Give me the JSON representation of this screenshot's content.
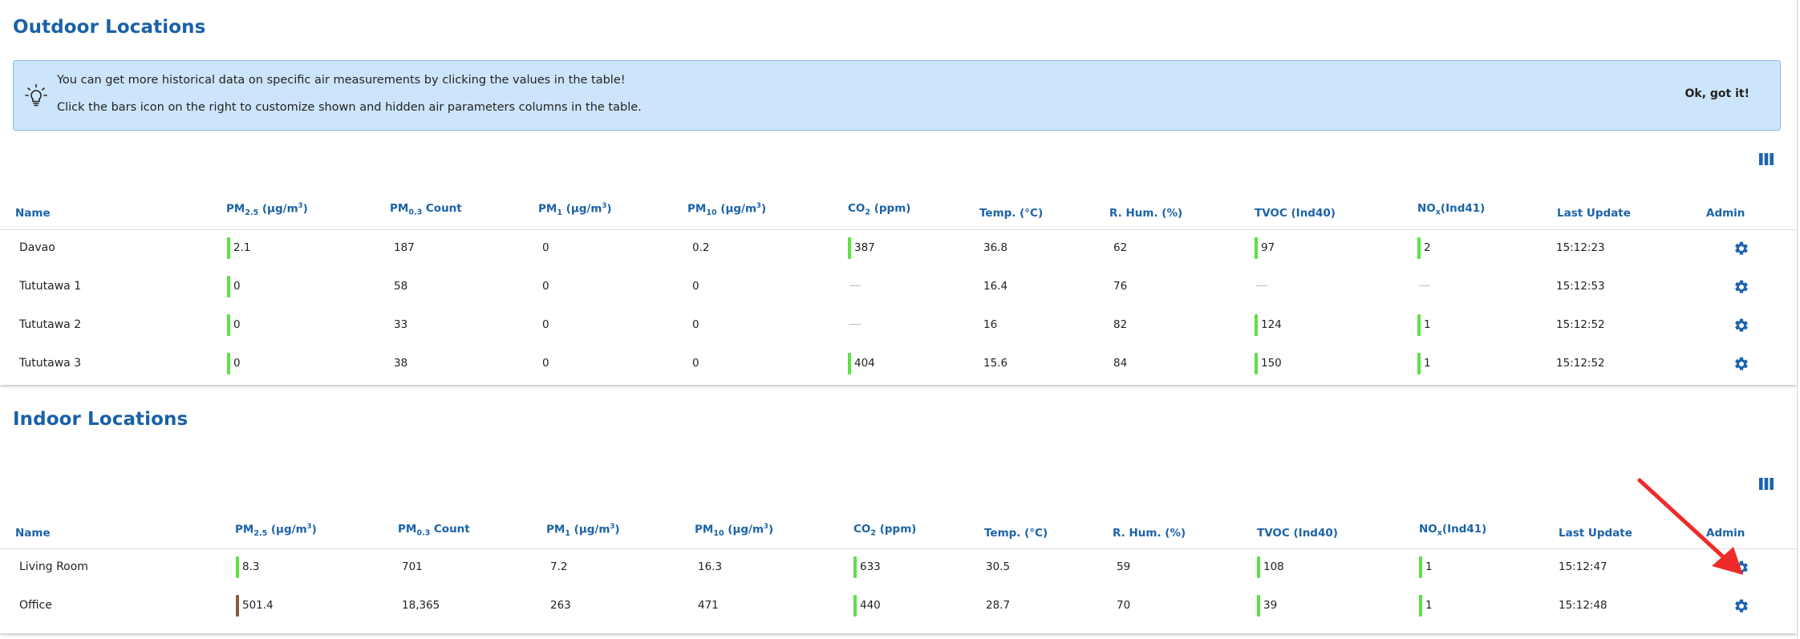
{
  "outdoor": {
    "title": "Outdoor Locations",
    "tip": {
      "line1": "You can get more historical data on specific air measurements by clicking the values in the table!",
      "line2": "Click the bars icon on the right to customize shown and hidden air parameters columns in the table.",
      "ok_label": "Ok, got it!"
    },
    "columns": {
      "name": "Name",
      "pm25_base": "PM",
      "pm25_sub": "2.5",
      "pm25_unit": " (µg/m",
      "pm25_sup": "3",
      "pm25_close": ")",
      "pm03_base": "PM",
      "pm03_sub": "0.3",
      "pm03_unit": " Count",
      "pm1_base": "PM",
      "pm1_sub": "1",
      "pm1_unit": " (µg/m",
      "pm1_sup": "3",
      "pm1_close": ")",
      "pm10_base": "PM",
      "pm10_sub": "10",
      "pm10_unit": " (µg/m",
      "pm10_sup": "3",
      "pm10_close": ")",
      "co2_base": "CO",
      "co2_sub": "2",
      "co2_unit": " (ppm)",
      "temp": "Temp. (°C)",
      "hum": "R. Hum. (%)",
      "tvoc": "TVOC (Ind40)",
      "nox_base": "NO",
      "nox_sub": "x",
      "nox_unit": "(Ind41)",
      "last_update": "Last Update",
      "admin": "Admin"
    },
    "rows": [
      {
        "name": "Davao",
        "pm25": "2.1",
        "pm03": "187",
        "pm1": "0",
        "pm10": "0.2",
        "co2": "387",
        "temp": "36.8",
        "hum": "62",
        "tvoc": "97",
        "nox": "2",
        "last_update": "15:12:23"
      },
      {
        "name": "Tututawa 1",
        "pm25": "0",
        "pm03": "58",
        "pm1": "0",
        "pm10": "0",
        "co2": null,
        "temp": "16.4",
        "hum": "76",
        "tvoc": null,
        "nox": null,
        "last_update": "15:12:53"
      },
      {
        "name": "Tututawa 2",
        "pm25": "0",
        "pm03": "33",
        "pm1": "0",
        "pm10": "0",
        "co2": null,
        "temp": "16",
        "hum": "82",
        "tvoc": "124",
        "nox": "1",
        "last_update": "15:12:52"
      },
      {
        "name": "Tututawa 3",
        "pm25": "0",
        "pm03": "38",
        "pm1": "0",
        "pm10": "0",
        "co2": "404",
        "temp": "15.6",
        "hum": "84",
        "tvoc": "150",
        "nox": "1",
        "last_update": "15:12:52"
      }
    ]
  },
  "indoor": {
    "title": "Indoor Locations",
    "rows": [
      {
        "name": "Living Room",
        "pm25": "8.3",
        "pm03": "701",
        "pm1": "7.2",
        "pm10": "16.3",
        "co2": "633",
        "temp": "30.5",
        "hum": "59",
        "tvoc": "108",
        "nox": "1",
        "last_update": "15:12:47"
      },
      {
        "name": "Office",
        "pm25": "501.4",
        "pm03": "18,365",
        "pm1": "263",
        "pm10": "471",
        "co2": "440",
        "temp": "28.7",
        "hum": "70",
        "tvoc": "39",
        "nox": "1",
        "last_update": "15:12:48"
      }
    ]
  },
  "icons": {
    "tip": "lightbulb-icon",
    "columns": "columns-bars-icon",
    "admin": "gear-icon",
    "annotation": "red-arrow"
  },
  "colors": {
    "title": "#1a61a6",
    "header": "#1c63a8",
    "tip_bg": "#cde5fb",
    "tip_border": "#8fbbe4",
    "indicator_good": "#5ee049",
    "indicator_hazardous": "#8b5a3c",
    "gear": "#1e63b0",
    "arrow": "#ee2b2b"
  },
  "indicator_levels": {
    "good": "#5ee049",
    "hazardous": "#8b5a3c"
  }
}
